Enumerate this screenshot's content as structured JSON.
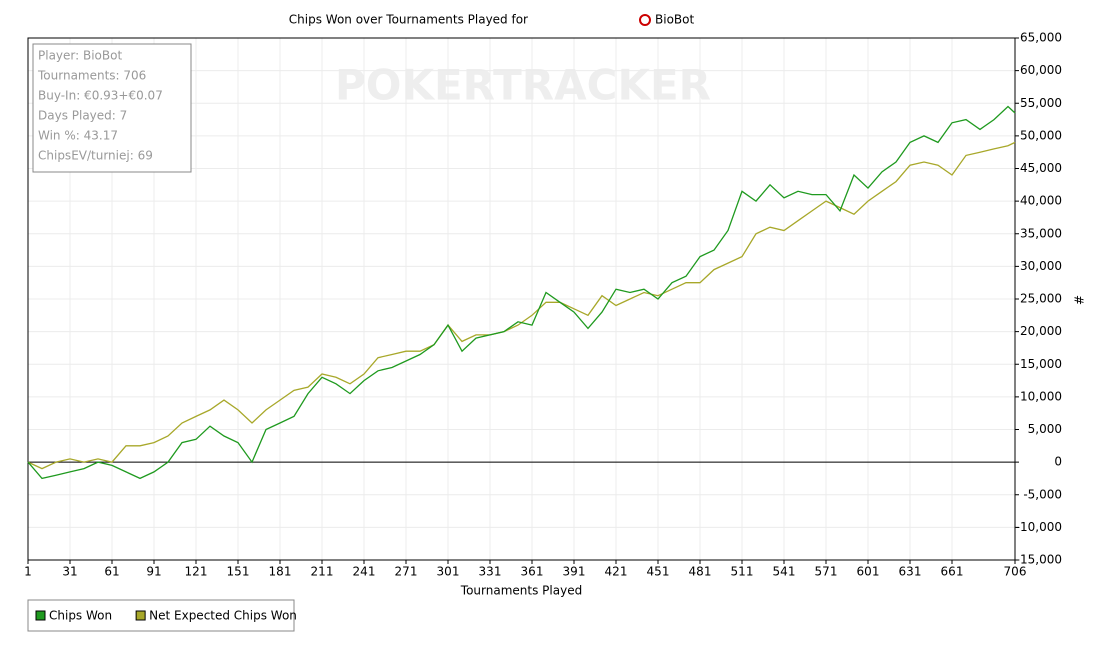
{
  "chart_data": {
    "type": "line",
    "title": "Chips Won over Tournaments Played for",
    "title_player": "BioBot",
    "watermark": "POKERTRACKER",
    "info_box": [
      "Player: BioBot",
      "Tournaments: 706",
      "Buy-In: €0.93+€0.07",
      "Days Played: 7",
      "Win %: 43.17",
      "ChipsEV/turniej: 69"
    ],
    "x_label": "Tournaments Played",
    "y_label": "#",
    "x": [
      1,
      11,
      21,
      31,
      41,
      51,
      61,
      71,
      81,
      91,
      101,
      111,
      121,
      131,
      141,
      151,
      161,
      171,
      181,
      191,
      201,
      211,
      221,
      231,
      241,
      251,
      261,
      271,
      281,
      291,
      301,
      311,
      321,
      331,
      341,
      351,
      361,
      371,
      381,
      391,
      401,
      411,
      421,
      431,
      441,
      451,
      461,
      471,
      481,
      491,
      501,
      511,
      521,
      531,
      541,
      551,
      561,
      571,
      581,
      591,
      601,
      611,
      621,
      631,
      641,
      651,
      661,
      671,
      681,
      691,
      701,
      706
    ],
    "series": [
      {
        "name": "Chips Won",
        "color": "#1f9a1f",
        "values": [
          0,
          -2500,
          -2000,
          -1500,
          -1000,
          0,
          -500,
          -1500,
          -2500,
          -1500,
          0,
          3000,
          3500,
          5500,
          4000,
          3000,
          0,
          5000,
          6000,
          7000,
          10500,
          13000,
          12000,
          10500,
          12500,
          14000,
          14500,
          15500,
          16500,
          18000,
          21000,
          17000,
          19000,
          19500,
          20000,
          21500,
          21000,
          26000,
          24500,
          23000,
          20500,
          23000,
          26500,
          26000,
          26500,
          25000,
          27500,
          28500,
          31500,
          32500,
          35500,
          41500,
          40000,
          42500,
          40500,
          41500,
          41000,
          41000,
          38500,
          44000,
          42000,
          44500,
          46000,
          49000,
          50000,
          49000,
          52000,
          52500,
          51000,
          52500,
          54500,
          53500
        ]
      },
      {
        "name": "Net Expected Chips Won",
        "color": "#a8a82a",
        "values": [
          0,
          -1000,
          0,
          500,
          0,
          500,
          0,
          2500,
          2500,
          3000,
          4000,
          6000,
          7000,
          8000,
          9500,
          8000,
          6000,
          8000,
          9500,
          11000,
          11500,
          13500,
          13000,
          12000,
          13500,
          16000,
          16500,
          17000,
          17000,
          18000,
          21000,
          18500,
          19500,
          19500,
          20000,
          21000,
          22500,
          24500,
          24500,
          23500,
          22500,
          25500,
          24000,
          25000,
          26000,
          25500,
          26500,
          27500,
          27500,
          29500,
          30500,
          31500,
          35000,
          36000,
          35500,
          37000,
          38500,
          40000,
          39000,
          38000,
          40000,
          41500,
          43000,
          45500,
          46000,
          45500,
          44000,
          47000,
          47500,
          48000,
          48500,
          49000
        ]
      }
    ],
    "xlim": [
      1,
      706
    ],
    "xticks": [
      1,
      31,
      61,
      91,
      121,
      151,
      181,
      211,
      241,
      271,
      301,
      331,
      361,
      391,
      421,
      451,
      481,
      511,
      541,
      571,
      601,
      631,
      661,
      706
    ],
    "ylim": [
      -15000,
      65000
    ],
    "yticks": [
      {
        "value": 65000,
        "label": "65,000"
      },
      {
        "value": 60000,
        "label": "60,000"
      },
      {
        "value": 55000,
        "label": "55,000"
      },
      {
        "value": 50000,
        "label": "50,000"
      },
      {
        "value": 45000,
        "label": "45,000"
      },
      {
        "value": 40000,
        "label": "40,000"
      },
      {
        "value": 35000,
        "label": "35,000"
      },
      {
        "value": 30000,
        "label": "30,000"
      },
      {
        "value": 25000,
        "label": "25,000"
      },
      {
        "value": 20000,
        "label": "20,000"
      },
      {
        "value": 15000,
        "label": "15,000"
      },
      {
        "value": 10000,
        "label": "10,000"
      },
      {
        "value": 5000,
        "label": "5,000"
      },
      0,
      {
        "value": -5000,
        "label": "-5,000"
      },
      {
        "value": -10000,
        "label": "-10,000"
      },
      {
        "value": -15000,
        "label": "-15,000"
      }
    ],
    "grid": true
  }
}
